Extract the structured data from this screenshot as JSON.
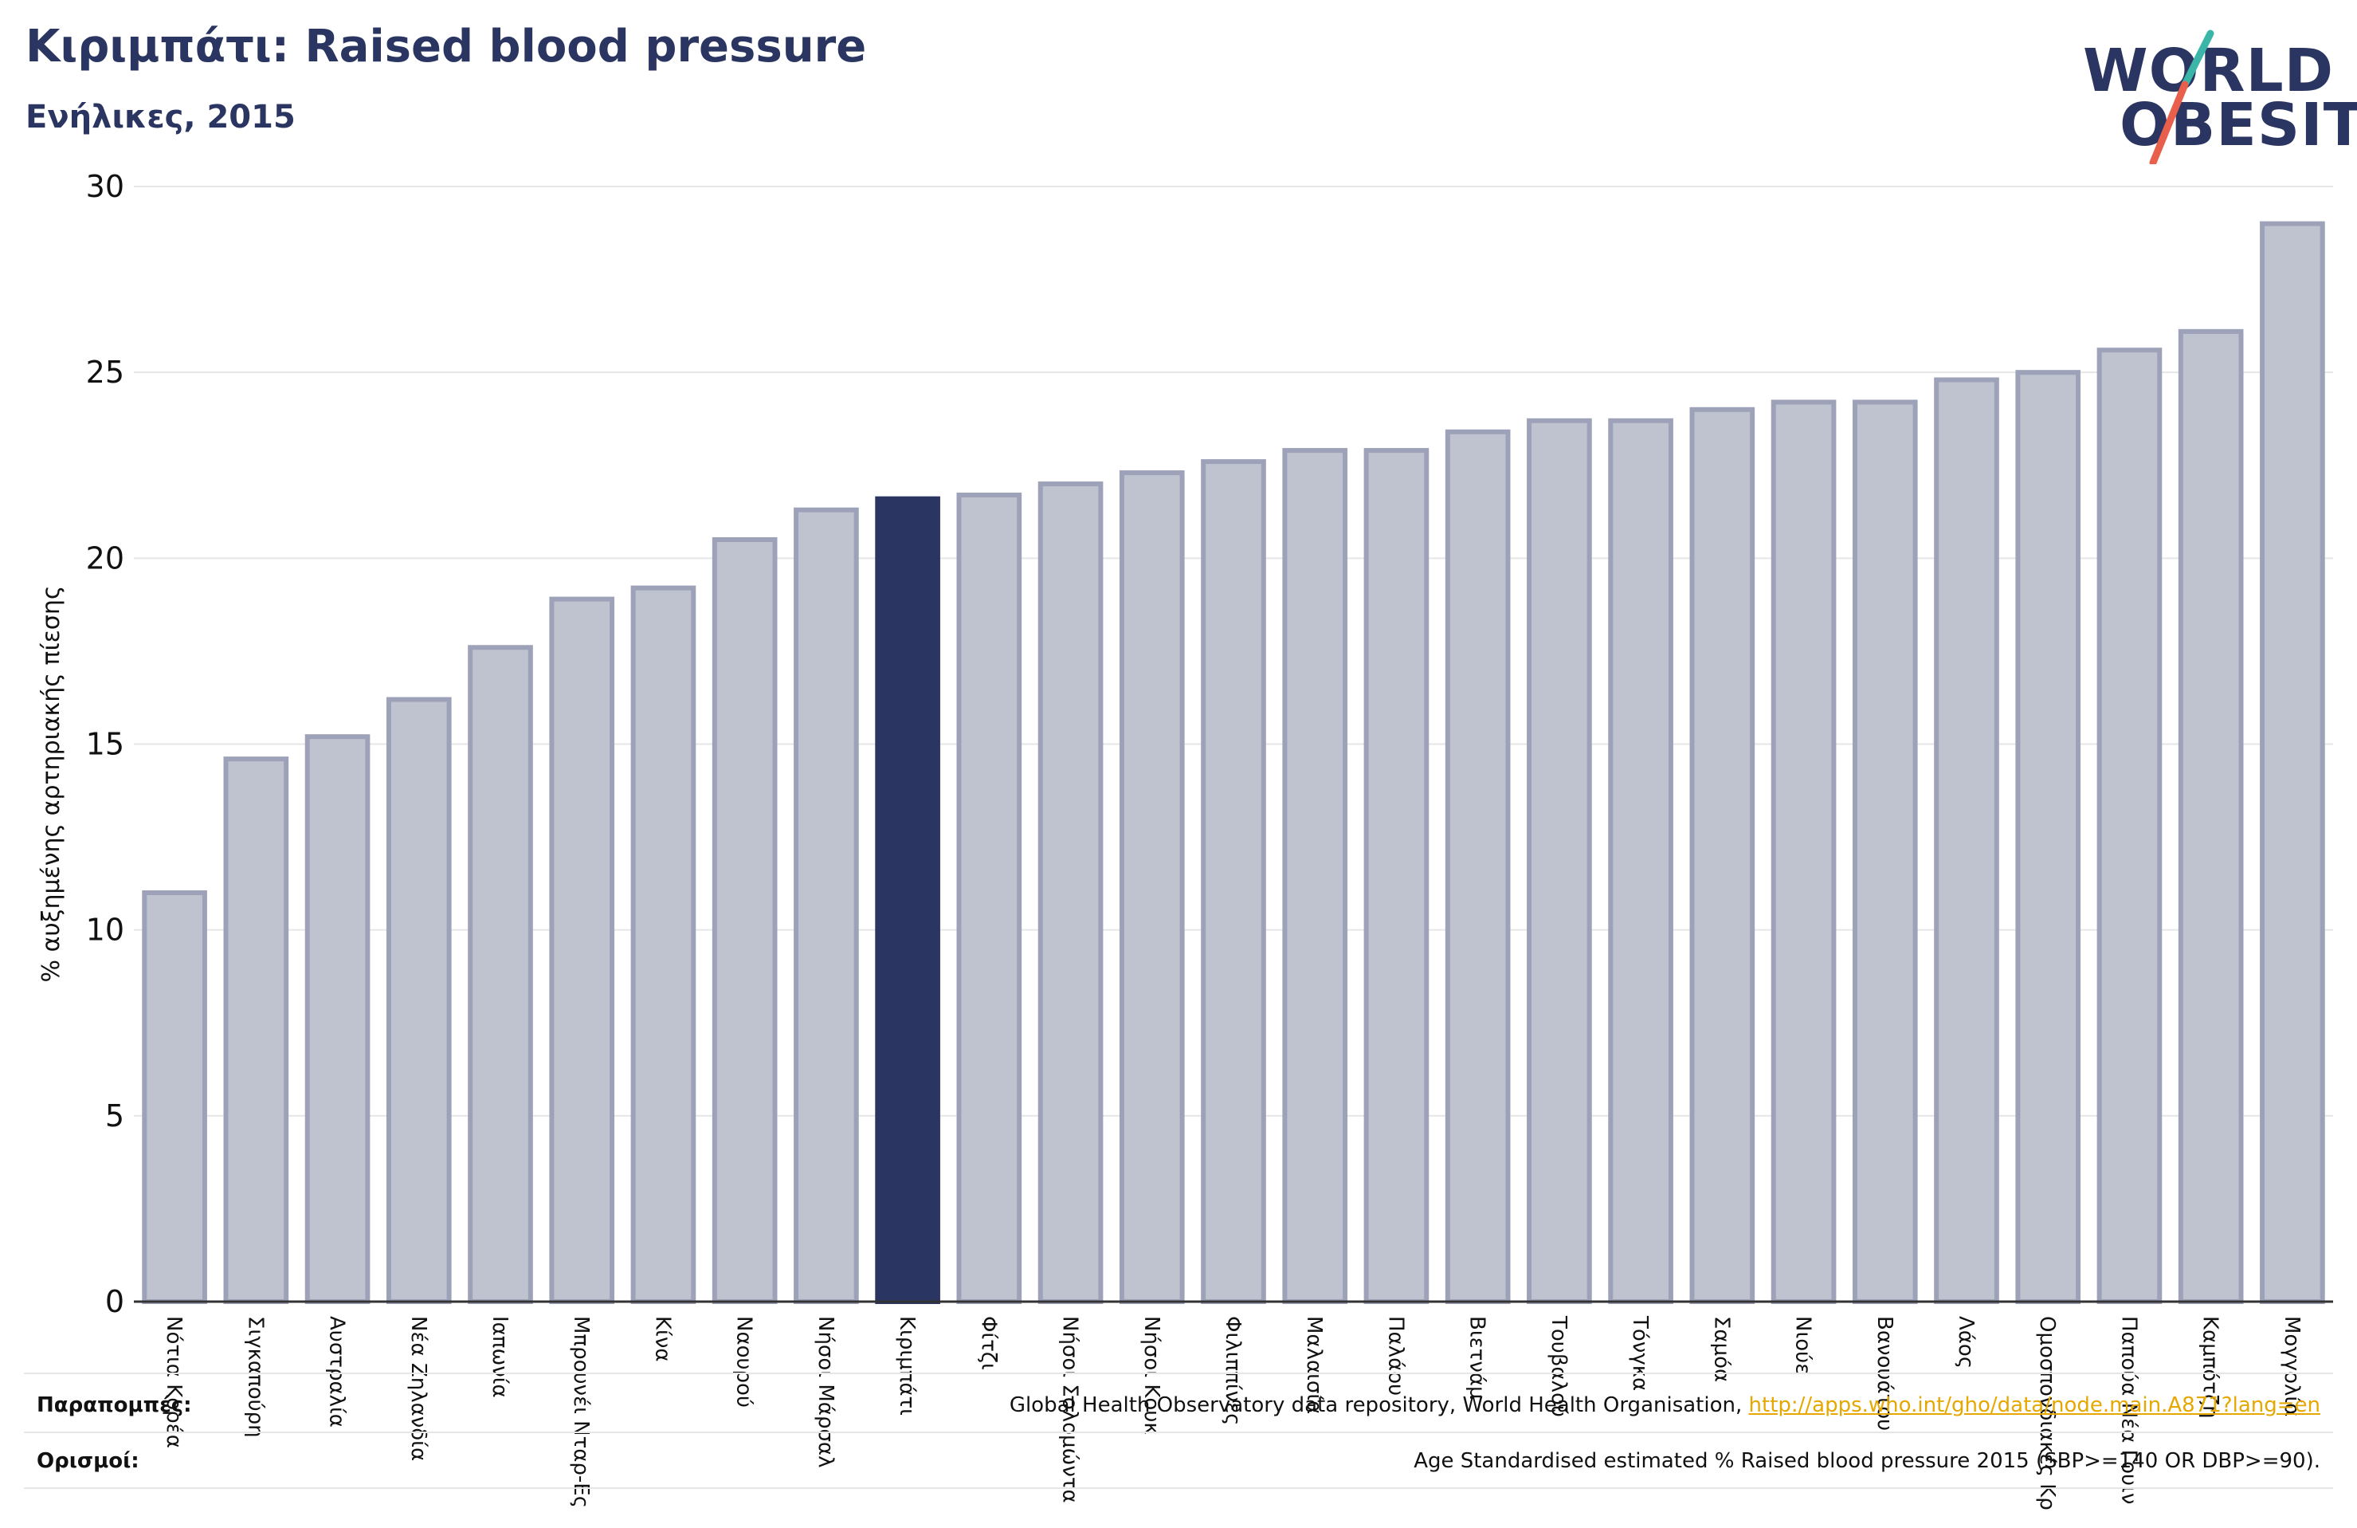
{
  "header": {
    "title": "Κιριμπάτι: Raised blood pressure",
    "subtitle": "Ενήλικες, 2015"
  },
  "logo": {
    "line1": "WORLD",
    "line2": "OBESITY",
    "colors": {
      "text": "#2a3561",
      "slash_top": "#3ab5a8",
      "slash_bottom": "#e8604c"
    }
  },
  "colors": {
    "bar": "#bfc2cf",
    "bar_edge": "#9da2b8",
    "highlight": "#2a3561",
    "axis": "#333333",
    "grid": "#e6e6e6"
  },
  "chart_data": {
    "type": "bar",
    "ylabel": "% αυξημένης αρτηριακής πίεσης",
    "ylim": [
      0,
      30
    ],
    "yticks": [
      0,
      5,
      10,
      15,
      20,
      25,
      30
    ],
    "grid": true,
    "highlight": "Κιριμπάτι",
    "categories": [
      "Νότια Κορέα",
      "Σιγκαπούρη",
      "Αυστραλία",
      "Νέα Ζηλανδία",
      "Ιαπωνία",
      "Μπρουνέι Νταρ-Ες Σαλάμ",
      "Κίνα",
      "Ναουρού",
      "Νήσοι Μάρσαλ",
      "Κιριμπάτι",
      "Φίτζι",
      "Νήσοι Σολομώντα",
      "Νήσοι Κουκ",
      "Φιλιππίνες",
      "Μαλαισία",
      "Παλάου",
      "Βιετνάμ",
      "Τουβαλού",
      "Τόνγκα",
      "Σαμόα",
      "Νιούε",
      "Βανουάτου",
      "Λάος",
      "Ομοσπονδιακές Πολιτείες της Μικρονησίας",
      "Παπούα Νέα Γουινέα",
      "Καμπότζη",
      "Μογγολία"
    ],
    "tick_labels": [
      "Νότια Κορέα",
      "Σιγκαπούρη",
      "Αυστραλία",
      "Νέα Ζηλανδία",
      "Ιαπωνία",
      "Μπρουνέι Νταρ-Ες",
      "Κίνα",
      "Ναουρού",
      "Νήσοι Μάρσαλ",
      "Κιριμπάτι",
      "Φίτζι",
      "Νήσοι Σολομώντα",
      "Νήσοι Κουκ",
      "Φιλιππίνες",
      "Μαλαισία",
      "Παλάου",
      "Βιετνάμ",
      "Τουβαλού",
      "Τόνγκα",
      "Σαμόα",
      "Νιούε",
      "Βανουάτου",
      "Λάος",
      "Ομοσπονδιακές Κρ",
      "Παπούα Νέα Γουιν",
      "Καμπότζη",
      "Μογγολία"
    ],
    "values": [
      11.0,
      14.6,
      15.2,
      16.2,
      17.6,
      18.9,
      19.2,
      20.5,
      21.3,
      21.6,
      21.7,
      22.0,
      22.3,
      22.6,
      22.9,
      22.9,
      23.4,
      23.7,
      23.7,
      24.0,
      24.2,
      24.2,
      24.8,
      25.0,
      25.6,
      26.1,
      29.0
    ]
  },
  "footer": {
    "refs_label": "Παραπομπές:",
    "refs_text": "Global Health Observatory data repository, World Health Organisation, ",
    "refs_link": "http://apps.who.int/gho/data/node.main.A871?lang=en",
    "defs_label": "Ορισμοί:",
    "defs_text": "Age Standardised estimated % Raised blood pressure 2015 (SBP>=140 OR DBP>=90)."
  }
}
